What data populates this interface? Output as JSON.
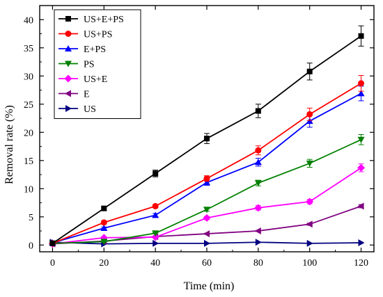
{
  "chart_data": {
    "type": "line",
    "title": "",
    "xlabel": "Time (min)",
    "ylabel": "Removal rate (%)",
    "xlim": [
      -5,
      125
    ],
    "ylim": [
      -1.2,
      42.5
    ],
    "x_ticks": [
      0,
      20,
      40,
      60,
      80,
      100,
      120
    ],
    "y_ticks": [
      0,
      5,
      10,
      15,
      20,
      25,
      30,
      35,
      40
    ],
    "grid": false,
    "legend_position": "top-left",
    "x": [
      0,
      20,
      40,
      60,
      80,
      100,
      120
    ],
    "series": [
      {
        "name": "US+E+PS",
        "color": "#000000",
        "marker": "square",
        "values": [
          0.3,
          6.5,
          12.7,
          18.9,
          23.8,
          30.8,
          37.1
        ],
        "errors": [
          0,
          0.3,
          0.6,
          0.9,
          1.2,
          1.5,
          1.8
        ]
      },
      {
        "name": "US+PS",
        "color": "#ff0000",
        "marker": "circle",
        "values": [
          0.3,
          4.0,
          6.9,
          11.8,
          16.8,
          23.2,
          28.7
        ],
        "errors": [
          0,
          0.3,
          0.3,
          0.5,
          0.8,
          1.1,
          1.4
        ]
      },
      {
        "name": "E+PS",
        "color": "#0000ff",
        "marker": "triangle-up",
        "values": [
          0.4,
          3.0,
          5.3,
          11.1,
          14.7,
          22.0,
          26.9
        ],
        "errors": [
          0,
          0.2,
          0.3,
          0.5,
          0.7,
          1.1,
          1.3
        ]
      },
      {
        "name": "PS",
        "color": "#008000",
        "marker": "triangle-down",
        "values": [
          0.3,
          0.6,
          2.1,
          6.3,
          11.0,
          14.5,
          18.7
        ],
        "errors": [
          0,
          0.1,
          0.1,
          0.3,
          0.5,
          0.7,
          0.9
        ]
      },
      {
        "name": "US+E",
        "color": "#ff00ff",
        "marker": "diamond",
        "values": [
          0.2,
          1.3,
          1.4,
          4.8,
          6.6,
          7.7,
          13.7
        ],
        "errors": [
          0,
          0.1,
          0.1,
          0.3,
          0.4,
          0.4,
          0.7
        ]
      },
      {
        "name": "E",
        "color": "#800080",
        "marker": "triangle-left",
        "values": [
          0.2,
          0.7,
          1.5,
          2.0,
          2.5,
          3.7,
          6.9
        ],
        "errors": [
          0,
          0.1,
          0.1,
          0.1,
          0.1,
          0.2,
          0.3
        ]
      },
      {
        "name": "US",
        "color": "#000080",
        "marker": "triangle-right",
        "values": [
          0.5,
          0.2,
          0.3,
          0.3,
          0.5,
          0.3,
          0.4
        ],
        "errors": [
          0,
          0.05,
          0.05,
          0.05,
          0.05,
          0.05,
          0.05
        ]
      }
    ]
  }
}
